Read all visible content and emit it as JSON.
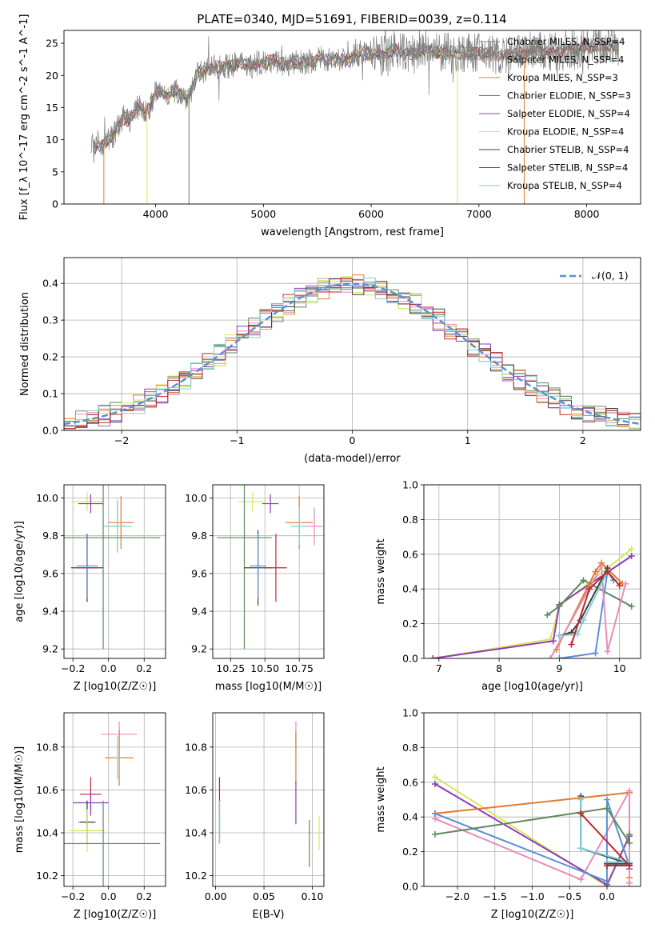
{
  "chart_data": [
    {
      "type": "line",
      "title": "PLATE=0340, MJD=51691, FIBERID=0039, z=0.114",
      "xlabel": "wavelength [Angstrom, rest frame]",
      "ylabel": "Flux [f_λ 10^-17 erg cm^-2 s^-1 A^-1]",
      "xlim": [
        3150,
        8500
      ],
      "ylim": [
        0,
        27
      ],
      "xticks": [
        4000,
        5000,
        6000,
        7000,
        8000
      ],
      "yticks": [
        0,
        5,
        10,
        15,
        20,
        25
      ],
      "legend_position": "right",
      "series": [
        {
          "name": "Chabrier MILES, N_SSP=4",
          "color": "#808080"
        },
        {
          "name": "Salpeter MILES, N_SSP=4",
          "color": "#e88bb8"
        },
        {
          "name": "Kroupa MILES, N_SSP=3",
          "color": "#e07b2a"
        },
        {
          "name": "Chabrier ELODIE, N_SSP=3",
          "color": "#5b8a5b"
        },
        {
          "name": "Salpeter ELODIE, N_SSP=4",
          "color": "#8e3cb8"
        },
        {
          "name": "Kroupa ELODIE, N_SSP=4",
          "color": "#d4e85a"
        },
        {
          "name": "Chabrier STELIB, N_SSP=4",
          "color": "#404040"
        },
        {
          "name": "Salpeter STELIB, N_SSP=4",
          "color": "#c0262a"
        },
        {
          "name": "Kroupa STELIB, N_SSP=4",
          "color": "#7fd0d8"
        }
      ],
      "spectrum": {
        "x": [
          3400,
          3450,
          3500,
          3550,
          3600,
          3650,
          3700,
          3750,
          3800,
          3850,
          3900,
          3950,
          4000,
          4100,
          4200,
          4300,
          4400,
          4500,
          4600,
          4700,
          4800,
          4900,
          5000,
          5100,
          5200,
          5300,
          5400,
          5500,
          5600,
          5700,
          5800,
          5900,
          6000,
          6100,
          6200,
          6300,
          6400,
          6500,
          6600,
          6700,
          6800,
          6900,
          7000,
          7100,
          7200,
          7300,
          7400,
          7500,
          7600,
          7700,
          7800,
          7900,
          8000,
          8100,
          8200,
          8300
        ],
        "y": [
          9.5,
          9.0,
          9.3,
          10.0,
          10.5,
          12.0,
          13.5,
          13.0,
          14.0,
          15.5,
          14.0,
          15.0,
          17.5,
          17.0,
          17.5,
          16.5,
          20.5,
          21.0,
          21.5,
          21.5,
          22.0,
          21.5,
          22.0,
          22.5,
          21.5,
          22.0,
          22.0,
          22.5,
          22.5,
          22.5,
          22.5,
          23.5,
          23.5,
          23.0,
          24.0,
          23.5,
          23.5,
          24.0,
          23.5,
          23.5,
          23.5,
          23.5,
          23.5,
          23.5,
          23.0,
          23.0,
          23.5,
          24.0,
          23.5,
          23.5,
          24.0,
          24.0,
          24.5,
          24.5,
          24.5,
          24.5
        ]
      }
    },
    {
      "type": "bar",
      "xlabel": "(data-model)/error",
      "ylabel": "Normed distribution",
      "xlim": [
        -2.5,
        2.5
      ],
      "ylim": [
        0,
        0.47
      ],
      "xticks": [
        -2,
        -1,
        0,
        1,
        2
      ],
      "xtick_labels": [
        "−2",
        "−1",
        "0",
        "1",
        "2"
      ],
      "yticks": [
        0.0,
        0.1,
        0.2,
        0.3,
        0.4
      ],
      "yticklabels": [
        "0.0",
        "0.1",
        "0.2",
        "0.3",
        "0.4"
      ],
      "grid": true,
      "legend_position": "top-right",
      "reference_curve": {
        "name": "𝒩(0, 1)",
        "color": "#5b8fd6"
      }
    },
    {
      "type": "scatter",
      "xlabel": "Z [log10(Z/Z☉)]",
      "ylabel": "age [log10(age/yr)]",
      "xlim": [
        -0.25,
        0.32
      ],
      "ylim": [
        9.15,
        10.07
      ],
      "xticks": [
        -0.2,
        0.0,
        0.2
      ],
      "xticklabels": [
        "−0.2",
        "0.0",
        "0.2"
      ],
      "yticks": [
        9.2,
        9.4,
        9.6,
        9.8,
        10.0
      ],
      "yticklabels": [
        "9.2",
        "9.4",
        "9.6",
        "9.8",
        "10.0"
      ],
      "grid": true,
      "points": [
        {
          "color": "#d4e85a",
          "x": -0.12,
          "y": 9.98,
          "xerr": 0.09,
          "yerr": 0.05
        },
        {
          "color": "#8e3cb8",
          "x": -0.1,
          "y": 9.97,
          "xerr": 0.07,
          "yerr": 0.05
        },
        {
          "color": "#e88bb8",
          "x": 0.05,
          "y": 9.85,
          "xerr": 0.05,
          "yerr": 0.13
        },
        {
          "color": "#e07b2a",
          "x": 0.07,
          "y": 9.87,
          "xerr": 0.07,
          "yerr": 0.14
        },
        {
          "color": "#7fd0d8",
          "x": 0.05,
          "y": 9.85,
          "xerr": 0.08,
          "yerr": 0.14
        },
        {
          "color": "#5b8a5b",
          "x": -0.03,
          "y": 9.79,
          "xerr": 0.32,
          "yerr": 0.59
        },
        {
          "color": "#404040",
          "x": -0.12,
          "y": 9.63,
          "xerr": 0.09,
          "yerr": 0.18
        },
        {
          "color": "#c0262a",
          "x": -0.12,
          "y": 9.63,
          "xerr": 0.06,
          "yerr": 0.18
        },
        {
          "color": "#5b8fd6",
          "x": -0.12,
          "y": 9.64,
          "xerr": 0.06,
          "yerr": 0.17
        }
      ]
    },
    {
      "type": "scatter",
      "xlabel": "mass [log10(M/M☉)]",
      "xlim": [
        10.12,
        10.93
      ],
      "ylim": [
        9.15,
        10.07
      ],
      "xticks": [
        10.25,
        10.5,
        10.75
      ],
      "xticklabels": [
        "10.25",
        "10.50",
        "10.75"
      ],
      "yticks": [
        9.2,
        9.4,
        9.6,
        9.8,
        10.0
      ],
      "yticklabels": [
        "9.2",
        "9.4",
        "9.6",
        "9.8",
        "10.0"
      ],
      "grid": true,
      "points": [
        {
          "color": "#d4e85a",
          "x": 10.41,
          "y": 9.98,
          "xerr": 0.1,
          "yerr": 0.05
        },
        {
          "color": "#8e3cb8",
          "x": 10.54,
          "y": 9.97,
          "xerr": 0.06,
          "yerr": 0.05
        },
        {
          "color": "#e88bb8",
          "x": 10.86,
          "y": 9.85,
          "xerr": 0.06,
          "yerr": 0.1
        },
        {
          "color": "#e07b2a",
          "x": 10.75,
          "y": 9.87,
          "xerr": 0.1,
          "yerr": 0.14
        },
        {
          "color": "#7fd0d8",
          "x": 10.75,
          "y": 9.85,
          "xerr": 0.06,
          "yerr": 0.1
        },
        {
          "color": "#5b8a5b",
          "x": 10.35,
          "y": 9.79,
          "xerr": 0.2,
          "yerr": 0.59
        },
        {
          "color": "#404040",
          "x": 10.45,
          "y": 9.63,
          "xerr": 0.1,
          "yerr": 0.2
        },
        {
          "color": "#c0262a",
          "x": 10.58,
          "y": 9.63,
          "xerr": 0.08,
          "yerr": 0.18
        },
        {
          "color": "#5b8fd6",
          "x": 10.45,
          "y": 9.64,
          "xerr": 0.06,
          "yerr": 0.17
        }
      ]
    },
    {
      "type": "line",
      "xlabel": "age [log10(age/yr)]",
      "ylabel": "mass weight",
      "xlim": [
        6.75,
        10.35
      ],
      "ylim": [
        0,
        1
      ],
      "xticks": [
        7,
        8,
        9,
        10
      ],
      "yticks": [
        0.0,
        0.2,
        0.4,
        0.6,
        0.8,
        1.0
      ],
      "yticklabels": [
        "0.0",
        "0.2",
        "0.4",
        "0.6",
        "0.8",
        "1.0"
      ],
      "grid": true,
      "series": [
        {
          "color": "#d4e85a",
          "x": [
            6.9,
            8.85,
            9.0,
            10.2
          ],
          "y": [
            0.0,
            0.11,
            0.3,
            0.63
          ]
        },
        {
          "color": "#8e3cb8",
          "x": [
            6.9,
            8.9,
            9.0,
            10.2
          ],
          "y": [
            0.0,
            0.1,
            0.31,
            0.59
          ]
        },
        {
          "color": "#5b8a5b",
          "x": [
            8.8,
            9.0,
            9.4,
            10.2
          ],
          "y": [
            0.25,
            0.3,
            0.45,
            0.3
          ]
        },
        {
          "color": "#e07b2a",
          "x": [
            8.95,
            9.6,
            9.7,
            10.05
          ],
          "y": [
            0.05,
            0.5,
            0.55,
            0.43
          ]
        },
        {
          "color": "#5b8fd6",
          "x": [
            9.0,
            9.6,
            9.8,
            9.9
          ],
          "y": [
            0.0,
            0.03,
            0.5,
            0.45
          ]
        },
        {
          "color": "#e88bb8",
          "x": [
            8.85,
            9.7,
            9.8,
            10.1
          ],
          "y": [
            0.0,
            0.53,
            0.04,
            0.43
          ]
        },
        {
          "color": "#404040",
          "x": [
            9.0,
            9.2,
            9.35,
            9.8
          ],
          "y": [
            0.13,
            0.15,
            0.22,
            0.52
          ]
        },
        {
          "color": "#7fd0d8",
          "x": [
            9.0,
            9.3,
            9.4,
            9.8
          ],
          "y": [
            0.13,
            0.14,
            0.22,
            0.5
          ]
        },
        {
          "color": "#c0262a",
          "x": [
            9.2,
            9.5,
            9.8,
            10.0
          ],
          "y": [
            0.08,
            0.4,
            0.5,
            0.42
          ]
        }
      ]
    },
    {
      "type": "scatter",
      "xlabel": "Z [log10(Z/Z☉)]",
      "ylabel": "mass [log10(M/M☉)]",
      "xlim": [
        -0.25,
        0.32
      ],
      "ylim": [
        10.15,
        10.96
      ],
      "xticks": [
        -0.2,
        0.0,
        0.2
      ],
      "xticklabels": [
        "−0.2",
        "0.0",
        "0.2"
      ],
      "yticks": [
        10.2,
        10.4,
        10.6,
        10.8
      ],
      "yticklabels": [
        "10.2",
        "10.4",
        "10.6",
        "10.8"
      ],
      "grid": true,
      "points": [
        {
          "color": "#e88bb8",
          "x": 0.06,
          "y": 10.86,
          "xerr": 0.1,
          "yerr": 0.06
        },
        {
          "color": "#e07b2a",
          "x": 0.06,
          "y": 10.75,
          "xerr": 0.08,
          "yerr": 0.13
        },
        {
          "color": "#7fd0d8",
          "x": 0.05,
          "y": 10.75,
          "xerr": 0.02,
          "yerr": 0.1
        },
        {
          "color": "#c0262a",
          "x": -0.1,
          "y": 10.58,
          "xerr": 0.06,
          "yerr": 0.08
        },
        {
          "color": "#8e3cb8",
          "x": -0.1,
          "y": 10.54,
          "xerr": 0.1,
          "yerr": 0.06
        },
        {
          "color": "#5b8fd6",
          "x": -0.12,
          "y": 10.45,
          "xerr": 0.05,
          "yerr": 0.1
        },
        {
          "color": "#404040",
          "x": -0.12,
          "y": 10.45,
          "xerr": 0.04,
          "yerr": 0.1
        },
        {
          "color": "#d4e85a",
          "x": -0.12,
          "y": 10.41,
          "xerr": 0.1,
          "yerr": 0.1
        },
        {
          "color": "#5b8a5b",
          "x": -0.03,
          "y": 10.35,
          "xerr": 0.32,
          "yerr": 0.2
        }
      ]
    },
    {
      "type": "scatter",
      "xlabel": "E(B-V)",
      "xlim": [
        -0.003,
        0.112
      ],
      "ylim": [
        10.15,
        10.96
      ],
      "xticks": [
        0.0,
        0.05,
        0.1
      ],
      "xticklabels": [
        "0.00",
        "0.05",
        "0.10"
      ],
      "yticks": [
        10.2,
        10.4,
        10.6,
        10.8
      ],
      "yticklabels": [
        "10.2",
        "10.4",
        "10.6",
        "10.8"
      ],
      "grid": true,
      "points": [
        {
          "color": "#c0262a",
          "x": 0.004,
          "y": 10.58,
          "xerr": 0,
          "yerr": 0.08
        },
        {
          "color": "#5b8fd6",
          "x": 0.004,
          "y": 10.45,
          "xerr": 0,
          "yerr": 0.1
        },
        {
          "color": "#404040",
          "x": 0.004,
          "y": 10.45,
          "xerr": 0,
          "yerr": 0.1
        },
        {
          "color": "#7fd0d8",
          "x": 0.004,
          "y": 10.45,
          "xerr": 0,
          "yerr": 0.1
        },
        {
          "color": "#e88bb8",
          "x": 0.083,
          "y": 10.86,
          "xerr": 0,
          "yerr": 0.06
        },
        {
          "color": "#e07b2a",
          "x": 0.083,
          "y": 10.75,
          "xerr": 0,
          "yerr": 0.12
        },
        {
          "color": "#8e3cb8",
          "x": 0.083,
          "y": 10.54,
          "xerr": 0,
          "yerr": 0.1
        },
        {
          "color": "#5b8a5b",
          "x": 0.097,
          "y": 10.35,
          "xerr": 0,
          "yerr": 0.11
        },
        {
          "color": "#d4e85a",
          "x": 0.107,
          "y": 10.4,
          "xerr": 0,
          "yerr": 0.08
        }
      ]
    },
    {
      "type": "line",
      "xlabel": "Z [log10(Z/Z☉)]",
      "ylabel": "mass weight",
      "xlim": [
        -2.45,
        0.45
      ],
      "ylim": [
        0,
        1
      ],
      "xticks": [
        -2.0,
        -1.5,
        -1.0,
        -0.5,
        0.0
      ],
      "xticklabels": [
        "−2.0",
        "−1.5",
        "−1.0",
        "−0.5",
        "0.0"
      ],
      "yticks": [
        0.0,
        0.2,
        0.4,
        0.6,
        0.8,
        1.0
      ],
      "yticklabels": [
        "0.0",
        "0.2",
        "0.4",
        "0.6",
        "0.8",
        "1.0"
      ],
      "grid": true,
      "series": [
        {
          "color": "#d4e85a",
          "x": [
            -2.3,
            0.0,
            0.3,
            0.3
          ],
          "y": [
            0.63,
            0.0,
            0.3,
            0.25
          ]
        },
        {
          "color": "#8e3cb8",
          "x": [
            -2.3,
            0.0,
            0.3,
            0.3
          ],
          "y": [
            0.59,
            0.01,
            0.29,
            0.1
          ]
        },
        {
          "color": "#e07b2a",
          "x": [
            -2.3,
            0.3,
            0.3,
            0.3
          ],
          "y": [
            0.42,
            0.54,
            0.05,
            0.02
          ]
        },
        {
          "color": "#e88bb8",
          "x": [
            -2.3,
            -0.35,
            0.3,
            0.3
          ],
          "y": [
            0.39,
            0.04,
            0.55,
            0.02
          ]
        },
        {
          "color": "#5b8fd6",
          "x": [
            -2.3,
            0.0,
            0.0,
            0.3
          ],
          "y": [
            0.42,
            0.03,
            0.5,
            0.12
          ]
        },
        {
          "color": "#5b8a5b",
          "x": [
            -2.3,
            0.0,
            0.3,
            0.3
          ],
          "y": [
            0.3,
            0.45,
            0.25,
            0.3
          ]
        },
        {
          "color": "#404040",
          "x": [
            -0.35,
            -0.35,
            0.3,
            0.0
          ],
          "y": [
            0.52,
            0.22,
            0.13,
            0.13
          ]
        },
        {
          "color": "#7fd0d8",
          "x": [
            -0.35,
            -0.35,
            0.3,
            0.0
          ],
          "y": [
            0.5,
            0.22,
            0.14,
            0.14
          ]
        },
        {
          "color": "#c0262a",
          "x": [
            -0.35,
            0.3,
            0.3,
            0.0
          ],
          "y": [
            0.42,
            0.12,
            0.12,
            0.12
          ]
        }
      ]
    }
  ]
}
